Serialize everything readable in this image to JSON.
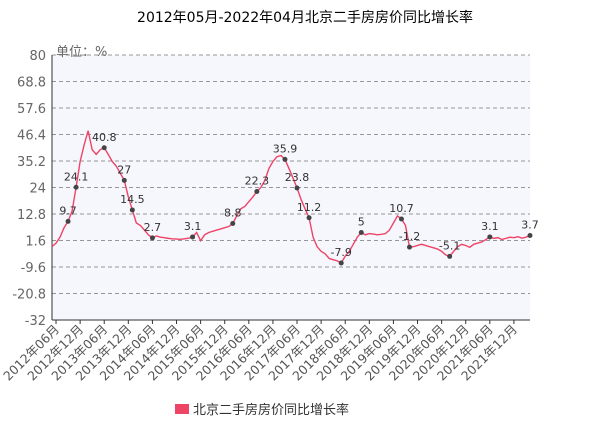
{
  "chart_data": {
    "type": "line",
    "title": "2012年05月-2022年04月北京二手房房价同比增长率",
    "y_label": "单位：%",
    "categories": [
      null,
      "2012年06月",
      null,
      null,
      null,
      null,
      null,
      "2012年12月",
      null,
      null,
      null,
      null,
      null,
      "2013年06月",
      null,
      null,
      null,
      null,
      null,
      "2013年12月",
      null,
      null,
      null,
      null,
      null,
      "2014年06月",
      null,
      null,
      null,
      null,
      null,
      "2014年12月",
      null,
      null,
      null,
      null,
      null,
      "2015年06月",
      null,
      null,
      null,
      null,
      null,
      "2015年12月",
      null,
      null,
      null,
      null,
      null,
      "2016年06月",
      null,
      null,
      null,
      null,
      null,
      "2016年12月",
      null,
      null,
      null,
      null,
      null,
      "2017年06月",
      null,
      null,
      null,
      null,
      null,
      "2017年12月",
      null,
      null,
      null,
      null,
      null,
      "2018年06月",
      null,
      null,
      null,
      null,
      null,
      "2018年12月",
      null,
      null,
      null,
      null,
      null,
      "2019年06月",
      null,
      null,
      null,
      null,
      null,
      "2019年12月",
      null,
      null,
      null,
      null,
      null,
      "2020年06月",
      null,
      null,
      null,
      null,
      null,
      "2020年12月",
      null,
      null,
      null,
      null,
      null,
      "2021年06月",
      null,
      null,
      null,
      null,
      null,
      "2021年12月",
      null,
      null,
      null,
      null
    ],
    "series": [
      {
        "name": "北京二手房房价同比增长率",
        "color": "#ee4466",
        "values": [
          -1,
          0.5,
          3,
          7,
          9.7,
          14,
          24.1,
          35,
          42,
          48,
          40,
          38,
          40,
          40.8,
          38,
          35,
          33,
          30,
          27,
          20,
          14.5,
          9,
          8,
          6,
          4,
          2.7,
          3.5,
          3,
          2.8,
          2.5,
          2.3,
          2.2,
          2.1,
          2.3,
          2.6,
          3.1,
          5,
          1.5,
          4,
          5,
          5.5,
          6,
          6.5,
          7,
          7.5,
          8.8,
          12,
          15,
          16,
          18,
          20,
          22.3,
          24,
          27,
          32,
          35,
          37,
          37.5,
          35.9,
          32,
          28,
          23.8,
          19,
          15,
          11.2,
          3,
          -1,
          -3,
          -4,
          -6,
          -6.5,
          -7,
          -7.9,
          -5,
          -3,
          0,
          3,
          5,
          4,
          4.5,
          4.3,
          4,
          4.2,
          4.5,
          6,
          9,
          12,
          10.7,
          8,
          -1.2,
          -1,
          -0.5,
          0,
          -0.5,
          -1,
          -1.5,
          -2,
          -3,
          -4.5,
          -5.1,
          -3,
          -1,
          0,
          -0.5,
          -1.3,
          0,
          0.5,
          1,
          2,
          3.1,
          2.5,
          2.8,
          2,
          2.5,
          3,
          2.8,
          3.2,
          2.6,
          3,
          3.7
        ],
        "value_labels": [
          null,
          null,
          null,
          null,
          "9.7",
          null,
          "24.1",
          null,
          null,
          null,
          null,
          null,
          null,
          "40.8",
          null,
          null,
          null,
          null,
          "27",
          null,
          "14.5",
          null,
          null,
          null,
          null,
          "2.7",
          null,
          null,
          null,
          null,
          null,
          null,
          null,
          null,
          null,
          "3.1",
          null,
          null,
          null,
          null,
          null,
          null,
          null,
          null,
          null,
          "8.8",
          null,
          null,
          null,
          null,
          null,
          "22.3",
          null,
          null,
          null,
          null,
          null,
          null,
          "35.9",
          null,
          null,
          "23.8",
          null,
          null,
          "11.2",
          null,
          null,
          null,
          null,
          null,
          null,
          null,
          "-7.9",
          null,
          null,
          null,
          null,
          "5",
          null,
          null,
          null,
          null,
          null,
          null,
          null,
          null,
          null,
          "10.7",
          null,
          "-1.2",
          null,
          null,
          null,
          null,
          null,
          null,
          null,
          null,
          null,
          "-5.1",
          null,
          null,
          null,
          null,
          null,
          null,
          null,
          null,
          null,
          "3.1",
          null,
          null,
          null,
          null,
          null,
          null,
          null,
          null,
          null,
          "3.7"
        ]
      }
    ],
    "ylim": [
      -32,
      80
    ],
    "yticks": [
      -32,
      -20.8,
      -9.6,
      1.6,
      12.8,
      24,
      35.2,
      46.4,
      57.6,
      68.8,
      80
    ],
    "grid": true
  }
}
